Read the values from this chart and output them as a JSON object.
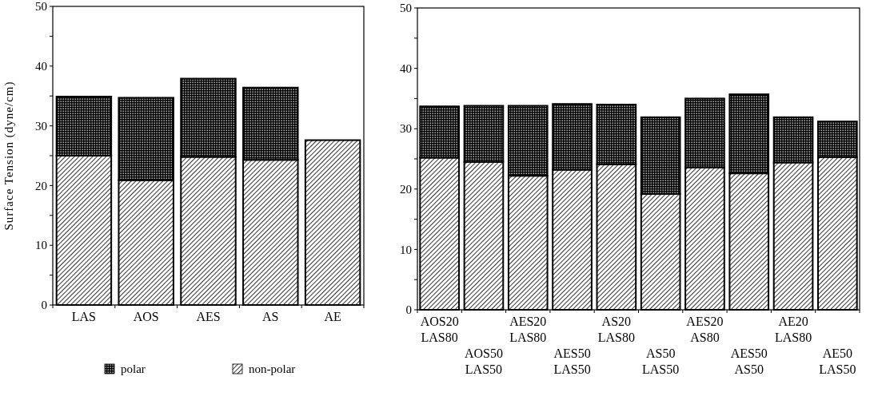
{
  "chart_data": [
    {
      "type": "bar",
      "stacked": true,
      "ylabel": "Surface Tension (dyne/cm)",
      "categories": [
        "LAS",
        "AOS",
        "AES",
        "AS",
        "AE"
      ],
      "series": [
        {
          "name": "non-polar",
          "color": "#000000",
          "values": [
            25.0,
            20.9,
            24.8,
            24.3,
            27.6
          ]
        },
        {
          "name": "polar",
          "color": "#000000",
          "values": [
            9.9,
            13.8,
            13.1,
            12.1,
            0
          ]
        }
      ],
      "ylim": [
        0,
        50
      ],
      "yticks": [
        0,
        {
          "value": 5,
          "label": null
        },
        10,
        {
          "value": 15,
          "label": null
        },
        20,
        {
          "value": 25,
          "label": null
        },
        30,
        {
          "value": 35,
          "label": null
        },
        40,
        {
          "value": 45,
          "label": null
        },
        50
      ],
      "legend": "bottom"
    },
    {
      "type": "bar",
      "stacked": true,
      "categories": [
        "AOS20 LAS80",
        "AOS50 LAS50",
        "AES20 LAS80",
        "AES50 LAS50",
        "AS20 LAS80",
        "AS50 LAS50",
        "AES20 AS80",
        "AES50 AS50",
        "AE20 LAS80",
        "AE50 LAS50"
      ],
      "series": [
        {
          "color": "#000000",
          "values": [
            25.2,
            24.5,
            22.2,
            23.2,
            24.1,
            19.2,
            23.6,
            22.6,
            24.4,
            25.3
          ]
        },
        {
          "color": "#000000",
          "values": [
            8.5,
            9.3,
            11.6,
            10.9,
            9.9,
            12.7,
            11.4,
            13.1,
            7.5,
            5.9
          ]
        }
      ],
      "ylim": [
        0,
        50
      ],
      "yticks": [
        0,
        {
          "value": 5,
          "label": null
        },
        10,
        {
          "value": 15,
          "label": null
        },
        20,
        {
          "value": 25,
          "label": null
        },
        30,
        {
          "value": 35,
          "label": null
        },
        40,
        {
          "value": 45,
          "label": null
        },
        50
      ]
    }
  ]
}
